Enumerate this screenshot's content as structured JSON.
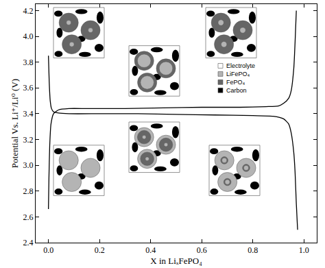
{
  "chart_data": {
    "type": "line",
    "xlabel": "X in LiₓFePO₄",
    "ylabel": "Potential Vs. Li⁺/Li⁰ (V)",
    "xlim": [
      -0.05,
      1.05
    ],
    "ylim": [
      2.4,
      4.25
    ],
    "xticks": [
      {
        "value": 0,
        "label": "0.0"
      },
      0.2,
      0.4,
      0.6,
      0.8,
      {
        "value": 1,
        "label": "1.0"
      }
    ],
    "yticks": [
      2.4,
      2.6,
      2.8,
      {
        "value": 3,
        "label": "3.0"
      },
      3.2,
      3.4,
      3.6,
      3.8,
      {
        "value": 4,
        "label": "4.0"
      },
      4.2
    ],
    "grid": false,
    "series": [
      {
        "color": "#000000",
        "line_style": "solid",
        "x": [
          0.0,
          0.002,
          0.005,
          0.01,
          0.02,
          0.04,
          0.08,
          0.15,
          0.3,
          0.45,
          0.6,
          0.75,
          0.85,
          0.9,
          0.92,
          0.94,
          0.95,
          0.96,
          0.965,
          0.97
        ],
        "values": [
          2.66,
          2.9,
          3.15,
          3.32,
          3.4,
          3.43,
          3.44,
          3.44,
          3.44,
          3.445,
          3.45,
          3.45,
          3.455,
          3.46,
          3.48,
          3.52,
          3.58,
          3.75,
          3.95,
          4.2
        ]
      },
      {
        "color": "#000000",
        "line_style": "solid",
        "x": [
          0.0,
          0.003,
          0.007,
          0.012,
          0.02,
          0.04,
          0.08,
          0.2,
          0.35,
          0.5,
          0.65,
          0.8,
          0.88,
          0.92,
          0.94,
          0.95,
          0.96,
          0.965,
          0.97,
          0.975
        ],
        "values": [
          3.85,
          3.65,
          3.5,
          3.44,
          3.415,
          3.405,
          3.4,
          3.4,
          3.4,
          3.395,
          3.39,
          3.385,
          3.38,
          3.36,
          3.32,
          3.25,
          3.1,
          2.95,
          2.7,
          2.5
        ]
      }
    ],
    "annotations": [
      {
        "text": "Electrolyte",
        "color": "#ffffff"
      },
      {
        "text": "LiFePO₄",
        "color": "#b4b4b4"
      },
      {
        "text": "FePO₄",
        "color": "#666666"
      },
      {
        "text": "Carbon",
        "color": "#000000"
      }
    ]
  }
}
